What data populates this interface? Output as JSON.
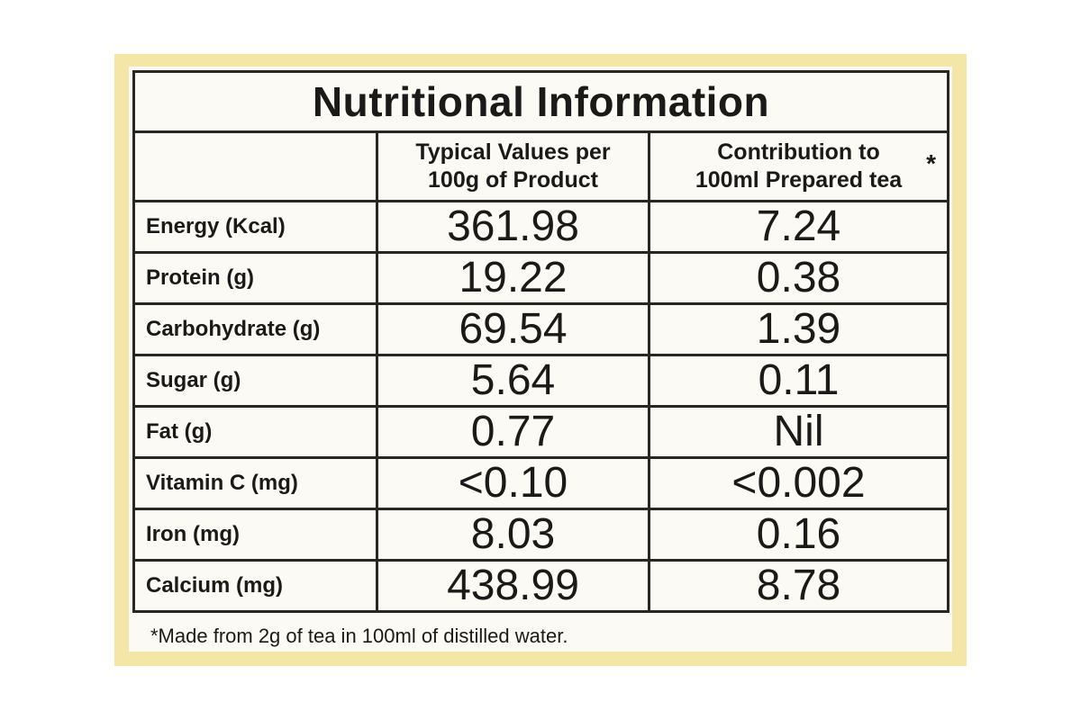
{
  "title": "Nutritional Information",
  "columns": {
    "blank": "",
    "per_100g": [
      "Typical Values per",
      "100g of Product"
    ],
    "per_100ml": [
      "Contribution to",
      "100ml Prepared tea"
    ],
    "asterisk": "*"
  },
  "rows": [
    {
      "label": "Energy (Kcal)",
      "per_100g": "361.98",
      "per_100ml": "7.24"
    },
    {
      "label": "Protein (g)",
      "per_100g": "19.22",
      "per_100ml": "0.38"
    },
    {
      "label": "Carbohydrate (g)",
      "per_100g": "69.54",
      "per_100ml": "1.39"
    },
    {
      "label": "Sugar (g)",
      "per_100g": "5.64",
      "per_100ml": "0.11"
    },
    {
      "label": "Fat (g)",
      "per_100g": "0.77",
      "per_100ml": "Nil"
    },
    {
      "label": "Vitamin C (mg)",
      "per_100g": "<0.10",
      "per_100ml": "<0.002"
    },
    {
      "label": "Iron (mg)",
      "per_100g": "8.03",
      "per_100ml": "0.16"
    },
    {
      "label": "Calcium (mg)",
      "per_100g": "438.99",
      "per_100ml": "8.78"
    }
  ],
  "footnote": "*Made from 2g of tea in 100ml of distilled water.",
  "colors": {
    "panel": "#f3e6a6",
    "label_bg": "#fbfaf4",
    "ink": "#1c1a18"
  }
}
